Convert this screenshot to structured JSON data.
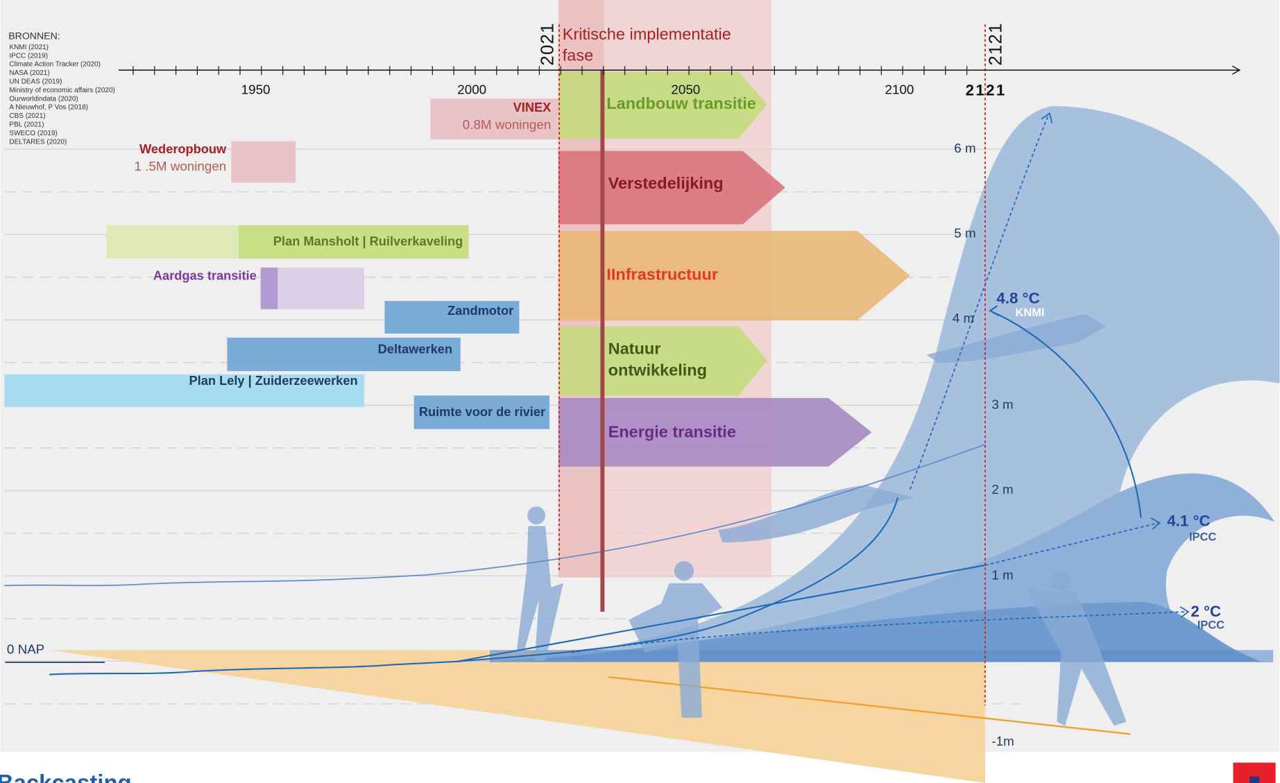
{
  "sources": {
    "title": "BRONNEN:",
    "items": [
      "KNMI (2021)",
      "IPCC (2019)",
      "Climate Action Tracker (2020)",
      "NASA (2021)",
      "UN DEAS (2019)",
      "Ministry of economic affairs  (2020)",
      "Ourworldindata (2020)",
      "A Nieuwhof, P Vos (2018)",
      "CBS (2021)",
      "PBL (2021)",
      "SWECO (2019)",
      "DELTARES (2020)"
    ]
  },
  "timeline": {
    "start_marker": "2021",
    "end_marker": "2121",
    "phase_label": [
      "Kritische  implementatie",
      "fase"
    ],
    "tick_labels": [
      "1950",
      "2000",
      "2050",
      "2100",
      "2121"
    ]
  },
  "history": [
    {
      "label": "VINEX",
      "detail": "0.8M woningen"
    },
    {
      "label": "Wederopbouw",
      "detail": "1 .5M woningen"
    },
    {
      "label": "Plan Mansholt | Ruilverkaveling"
    },
    {
      "label": "Aardgas transitie"
    },
    {
      "label": "Zandmotor"
    },
    {
      "label": "Deltawerken"
    },
    {
      "label": "Plan Lely | Zuiderzeewerken"
    },
    {
      "label": "Ruimte voor de rivier"
    }
  ],
  "transitions": [
    {
      "label": [
        "Landbouw transitie"
      ]
    },
    {
      "label": [
        "Verstedelijking"
      ]
    },
    {
      "label": [
        "IInfrastructuur"
      ]
    },
    {
      "label": [
        "Natuur",
        "ontwikkeling"
      ]
    },
    {
      "label": [
        "Energie transitie"
      ]
    }
  ],
  "levels": [
    "6 m",
    "5 m",
    "4 m",
    "3 m",
    "2 m",
    "1 m",
    "0 NAP",
    "-1m"
  ],
  "scenarios": [
    {
      "temperature": "4.8 °C",
      "source": "KNMI"
    },
    {
      "temperature": "4.1 °C",
      "source": "IPCC"
    },
    {
      "temperature": "2 °C",
      "source": "IPCC"
    }
  ],
  "footer": {
    "title": "Backcasting"
  }
}
